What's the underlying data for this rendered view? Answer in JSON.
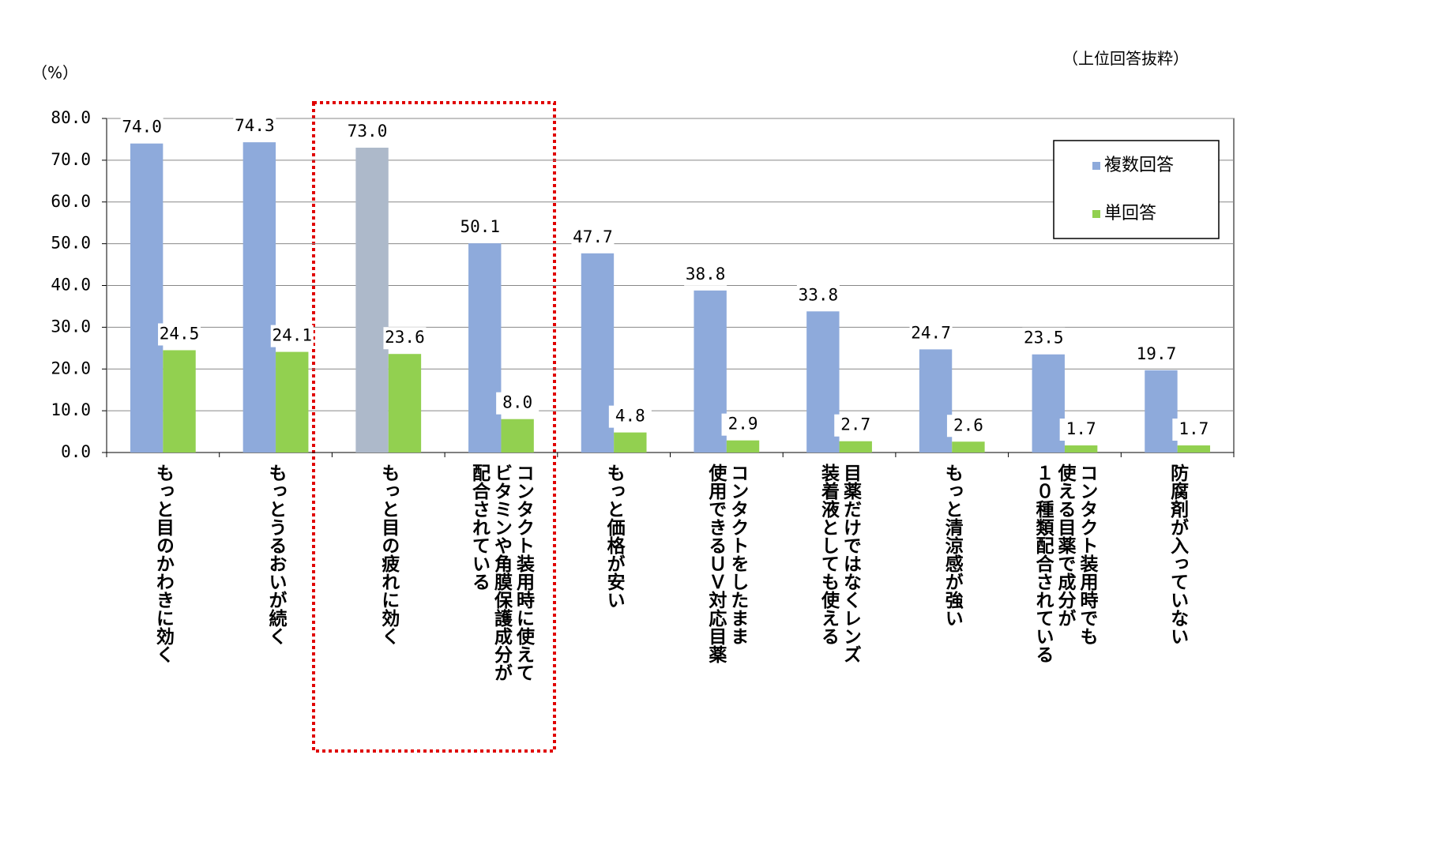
{
  "chart_data": {
    "type": "bar",
    "unit_note": "（%）",
    "subtitle": "（上位回答抜粋）",
    "categories": [
      "もっと目のかわきに効く",
      "もっとうるおいが続く",
      "もっと目の疲れに効く",
      "コンタクト装用時に使えて\nビタミンや角膜保護成分が\n配合されている",
      "もっと価格が安い",
      "コンタクトをしたまま\n使用できるＵＶ対応目薬",
      "目薬だけではなくレンズ\n装着液としても使える",
      "もっと清涼感が強い",
      "コンタクト装用時でも\n使える目薬で成分が\n１０種類配合されている",
      "防腐剤が入っていない"
    ],
    "series": [
      {
        "name": "複数回答",
        "color": "#8eaadb",
        "colors": [
          "#8eaadb",
          "#8eaadb",
          "#adb9ca",
          "#8eaadb",
          "#8eaadb",
          "#8eaadb",
          "#8eaadb",
          "#8eaadb",
          "#8eaadb",
          "#8eaadb"
        ],
        "values": [
          74.0,
          74.3,
          73.0,
          50.1,
          47.7,
          38.8,
          33.8,
          24.7,
          23.5,
          19.7
        ],
        "value_labels": [
          "74.0",
          "74.3",
          "73.0",
          "50.1",
          "47.7",
          "38.8",
          "33.8",
          "24.7",
          "23.5",
          "19.7"
        ]
      },
      {
        "name": "単回答",
        "color": "#92d050",
        "values": [
          24.5,
          24.1,
          23.6,
          8.0,
          4.8,
          2.9,
          2.7,
          2.6,
          1.7,
          1.7
        ],
        "value_labels": [
          "24.5",
          "24.1",
          "23.6",
          "8.0",
          "4.8",
          "2.9",
          "2.7",
          "2.6",
          "1.7",
          "1.7"
        ]
      }
    ],
    "ylim": [
      0,
      80
    ],
    "yticks": [
      {
        "value": 0,
        "label": "0.0"
      },
      {
        "value": 10,
        "label": "10.0"
      },
      {
        "value": 20,
        "label": "20.0"
      },
      {
        "value": 30,
        "label": "30.0"
      },
      {
        "value": 40,
        "label": "40.0"
      },
      {
        "value": 50,
        "label": "50.0"
      },
      {
        "value": 60,
        "label": "60.0"
      },
      {
        "value": 70,
        "label": "70.0"
      },
      {
        "value": 80,
        "label": "80.0"
      }
    ],
    "grid": true,
    "legend": "upper right"
  }
}
